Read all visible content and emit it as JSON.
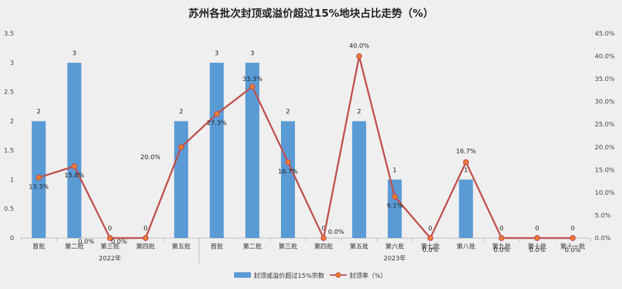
{
  "chart_data": {
    "type": "bar+line",
    "title": "苏州各批次封顶或溢价超过15%地块占比走势（%）",
    "categories": [
      "首批",
      "第二批",
      "第三批",
      "第四批",
      "第五批",
      "首批",
      "第二批",
      "第三批",
      "第四批",
      "第五批",
      "第六批",
      "第七批",
      "第八批",
      "第九批",
      "第十批",
      "第十一批"
    ],
    "groups": [
      {
        "label": "2022年",
        "start": 0,
        "end": 4
      },
      {
        "label": "2023年",
        "start": 5,
        "end": 15
      }
    ],
    "series": [
      {
        "name": "封顶或溢价超过15%宗数",
        "type": "bar",
        "axis": "left",
        "color": "#5b9bd5",
        "values": [
          2,
          3,
          0,
          0,
          2,
          3,
          3,
          2,
          0,
          2,
          1,
          0,
          1,
          0,
          0,
          0
        ],
        "labels": [
          "2",
          "3",
          "0",
          "0",
          "2",
          "3",
          "3",
          "2",
          "0",
          "2",
          "1",
          "0",
          "1",
          "0",
          "0",
          "0"
        ]
      },
      {
        "name": "封顶率（%）",
        "type": "line",
        "axis": "right",
        "color": "#c0504d",
        "marker": "#ed7d31",
        "values": [
          13.3,
          15.8,
          0.0,
          0.0,
          20.0,
          27.3,
          33.3,
          16.7,
          0.0,
          40.0,
          9.1,
          0.0,
          16.7,
          0.0,
          0.0,
          0.0
        ],
        "labels": [
          "13.3%",
          "15.8%",
          "0.0%",
          "0.0%",
          "20.0%",
          "27.3%",
          "33.3%",
          "16.7%",
          "0.0%",
          "40.0%",
          "9.1%",
          "0.0%",
          "16.7%",
          "0.0%",
          "0.0%",
          "0.0%"
        ]
      }
    ],
    "y_left": {
      "min": 0,
      "max": 3.5,
      "ticks": [
        "0",
        "0.5",
        "1",
        "1.5",
        "2",
        "2.5",
        "3",
        "3.5"
      ]
    },
    "y_right": {
      "min": 0,
      "max": 45,
      "ticks": [
        "0.0%",
        "5.0%",
        "10.0%",
        "15.0%",
        "20.0%",
        "25.0%",
        "30.0%",
        "35.0%",
        "40.0%",
        "45.0%"
      ]
    },
    "grid": false,
    "legend_position": "bottom"
  }
}
